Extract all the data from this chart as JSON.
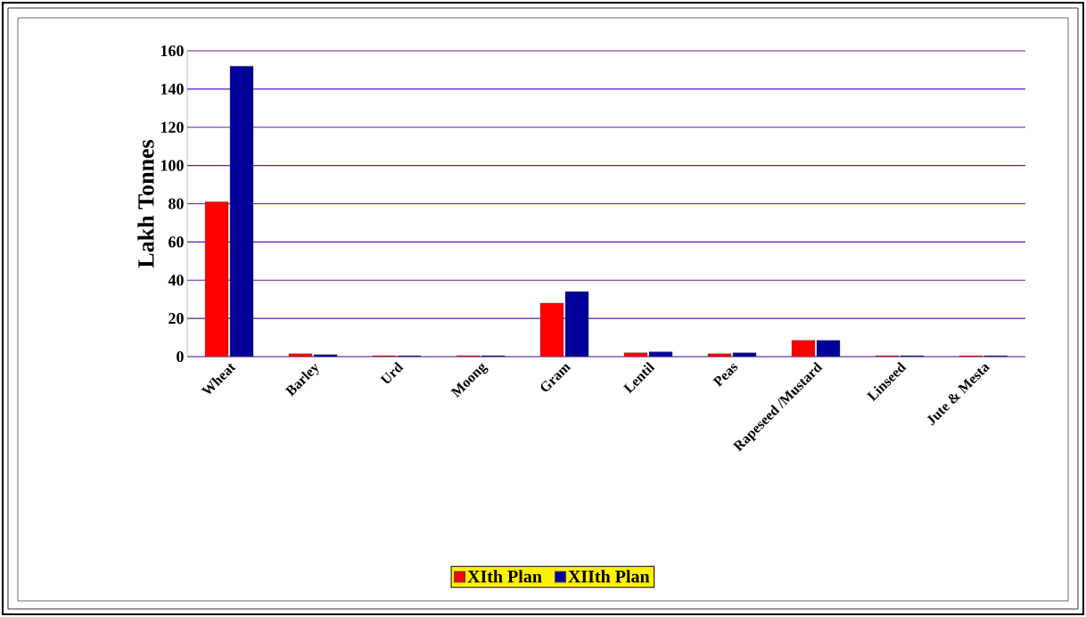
{
  "chart_data": {
    "type": "bar",
    "ylabel": "Lakh Tonnes",
    "categories": [
      "Wheat",
      "Barley",
      "Urd",
      "Moong",
      "Gram",
      "Lentil",
      "Peas",
      "Rapeseed /Mustard",
      "Linseed",
      "Jute & Mesta"
    ],
    "series": [
      {
        "name": "XIth Plan",
        "color": "#ff0000",
        "values": [
          81,
          1.5,
          0.5,
          0.5,
          28,
          2,
          1.5,
          8.5,
          0.5,
          0.5
        ]
      },
      {
        "name": "XIIth Plan",
        "color": "#000099",
        "values": [
          152,
          1,
          0.5,
          0.5,
          34,
          2.5,
          2,
          8.5,
          0.5,
          0.5
        ]
      }
    ],
    "ylim": [
      0,
      160
    ],
    "yticks": [
      0,
      20,
      40,
      60,
      80,
      100,
      120,
      140,
      160
    ],
    "grid": "y",
    "legend": "bottom"
  }
}
